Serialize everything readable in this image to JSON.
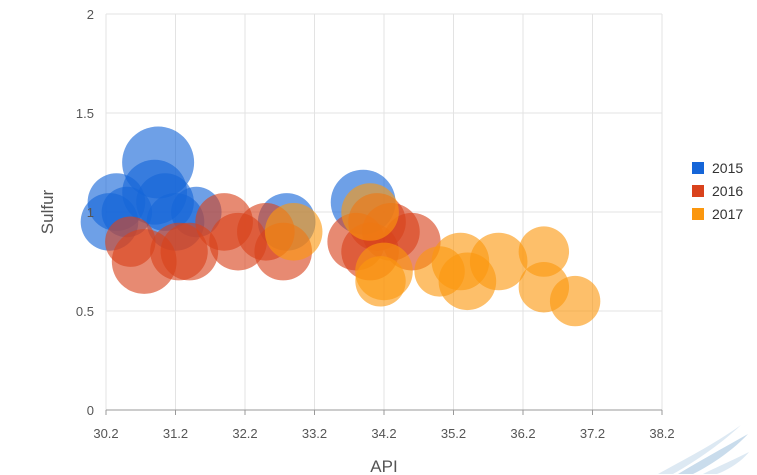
{
  "chart_data": {
    "type": "bubble",
    "xlabel": "API",
    "ylabel": "Sulfur",
    "xlim": [
      30.2,
      38.2
    ],
    "ylim": [
      0,
      2
    ],
    "xticks": [
      "30.2",
      "31.2",
      "32.2",
      "33.2",
      "34.2",
      "35.2",
      "36.2",
      "37.2",
      "38.2"
    ],
    "yticks": [
      "0",
      "0.5",
      "1",
      "1.5",
      "2"
    ],
    "grid": true,
    "legend_position": "right",
    "series": [
      {
        "name": "2015",
        "color": "#1565d8",
        "points": [
          {
            "x": 30.25,
            "y": 0.95,
            "r": 8
          },
          {
            "x": 30.35,
            "y": 1.05,
            "r": 8
          },
          {
            "x": 30.5,
            "y": 1.0,
            "r": 7
          },
          {
            "x": 30.9,
            "y": 1.1,
            "r": 9
          },
          {
            "x": 30.95,
            "y": 1.25,
            "r": 10
          },
          {
            "x": 31.05,
            "y": 1.05,
            "r": 8
          },
          {
            "x": 31.2,
            "y": 0.95,
            "r": 8
          },
          {
            "x": 31.5,
            "y": 1.0,
            "r": 7
          },
          {
            "x": 32.8,
            "y": 0.95,
            "r": 8
          },
          {
            "x": 33.9,
            "y": 1.05,
            "r": 9
          }
        ]
      },
      {
        "name": "2016",
        "color": "#d9421c",
        "points": [
          {
            "x": 30.55,
            "y": 0.85,
            "r": 7
          },
          {
            "x": 30.75,
            "y": 0.75,
            "r": 9
          },
          {
            "x": 31.25,
            "y": 0.8,
            "r": 8
          },
          {
            "x": 31.4,
            "y": 0.8,
            "r": 8
          },
          {
            "x": 31.9,
            "y": 0.95,
            "r": 8
          },
          {
            "x": 32.1,
            "y": 0.85,
            "r": 8
          },
          {
            "x": 32.5,
            "y": 0.9,
            "r": 8
          },
          {
            "x": 32.75,
            "y": 0.8,
            "r": 8
          },
          {
            "x": 33.8,
            "y": 0.85,
            "r": 8
          },
          {
            "x": 34.0,
            "y": 0.8,
            "r": 8
          },
          {
            "x": 34.1,
            "y": 0.95,
            "r": 8
          },
          {
            "x": 34.3,
            "y": 0.9,
            "r": 8
          },
          {
            "x": 34.6,
            "y": 0.85,
            "r": 8
          }
        ]
      },
      {
        "name": "2017",
        "color": "#fb970e",
        "points": [
          {
            "x": 32.9,
            "y": 0.9,
            "r": 8
          },
          {
            "x": 34.0,
            "y": 1.0,
            "r": 8
          },
          {
            "x": 34.15,
            "y": 0.65,
            "r": 7
          },
          {
            "x": 34.2,
            "y": 0.7,
            "r": 8
          },
          {
            "x": 35.0,
            "y": 0.7,
            "r": 7
          },
          {
            "x": 35.3,
            "y": 0.75,
            "r": 8
          },
          {
            "x": 35.4,
            "y": 0.65,
            "r": 8
          },
          {
            "x": 35.85,
            "y": 0.75,
            "r": 8
          },
          {
            "x": 36.5,
            "y": 0.8,
            "r": 7
          },
          {
            "x": 36.5,
            "y": 0.62,
            "r": 7
          },
          {
            "x": 36.95,
            "y": 0.55,
            "r": 7
          }
        ]
      }
    ]
  }
}
